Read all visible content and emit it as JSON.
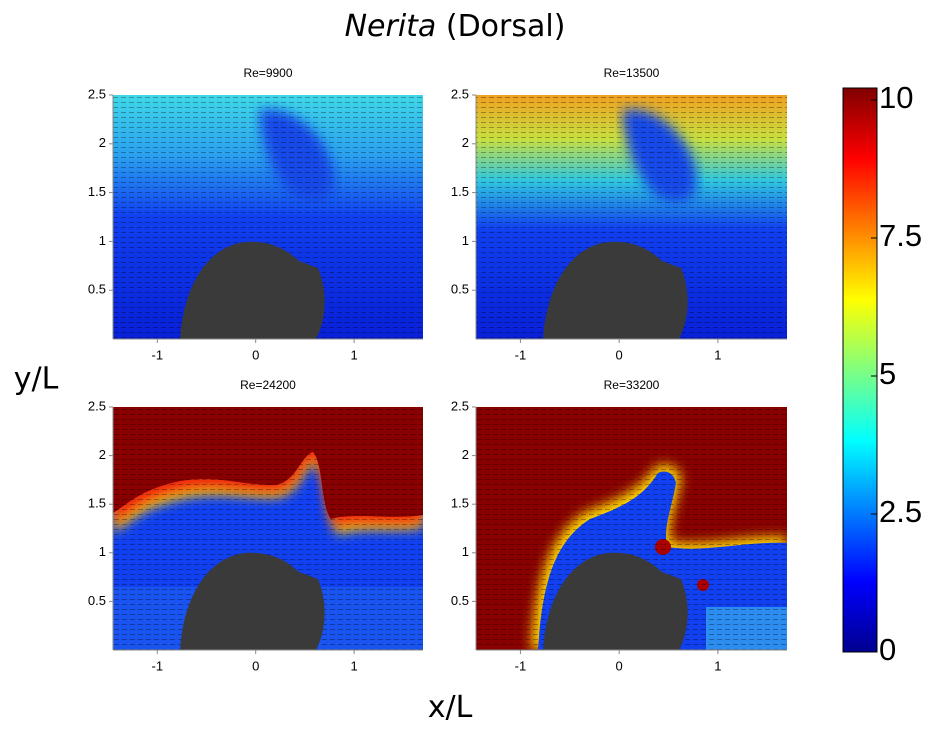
{
  "title": {
    "species": "Nerita",
    "view": "(Dorsal)"
  },
  "x_label": "x/L",
  "y_label": "y/L",
  "chart_data": [
    {
      "type": "heatmap",
      "title": "Re=9900",
      "xlim": [
        -1.45,
        1.7
      ],
      "ylim": [
        0,
        2.5
      ],
      "xticks": [
        -1,
        0,
        1
      ],
      "yticks": [
        0.5,
        1,
        1.5,
        2,
        2.5
      ]
    },
    {
      "type": "heatmap",
      "title": "Re=13500",
      "xlim": [
        -1.45,
        1.7
      ],
      "ylim": [
        0,
        2.5
      ],
      "xticks": [
        -1,
        0,
        1
      ],
      "yticks": [
        0.5,
        1,
        1.5,
        2,
        2.5
      ]
    },
    {
      "type": "heatmap",
      "title": "Re=24200",
      "xlim": [
        -1.45,
        1.7
      ],
      "ylim": [
        0,
        2.5
      ],
      "xticks": [
        -1,
        0,
        1
      ],
      "yticks": [
        0.5,
        1,
        1.5,
        2,
        2.5
      ]
    },
    {
      "type": "heatmap",
      "title": "Re=33200",
      "xlim": [
        -1.45,
        1.7
      ],
      "ylim": [
        0,
        2.5
      ],
      "xticks": [
        -1,
        0,
        1
      ],
      "yticks": [
        0.5,
        1,
        1.5,
        2,
        2.5
      ]
    }
  ],
  "colorbar": {
    "range": [
      0,
      10
    ],
    "ticks": [
      0,
      2.5,
      5,
      7.5,
      10
    ]
  }
}
